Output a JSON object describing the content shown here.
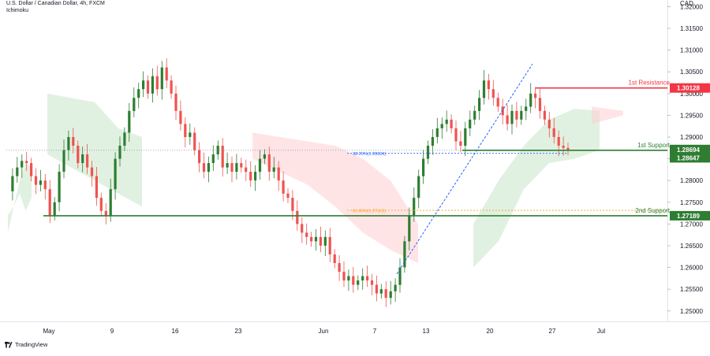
{
  "header": {
    "symbol_line": "U.S. Dollar / Canadian Dollar, 4h, FXCM",
    "indicator": "Ichimoku"
  },
  "footer": {
    "brand": "TradingView"
  },
  "chart_data": {
    "type": "candlestick",
    "y_axis_label": "CAD",
    "y_ticks": [
      1.32,
      1.315,
      1.31,
      1.305,
      1.3,
      1.295,
      1.29,
      1.285,
      1.28,
      1.275,
      1.27,
      1.265,
      1.26,
      1.255,
      1.25
    ],
    "y_tick_labels": [
      "1.32000",
      "1.31500",
      "1.31000",
      "1.30500",
      "1.30000",
      "1.29500",
      "1.29000",
      "1.28500",
      "1.28000",
      "1.27500",
      "1.27000",
      "1.26500",
      "1.26000",
      "1.25500",
      "1.25000"
    ],
    "ylim": [
      1.2476,
      1.3215
    ],
    "x_tick_labels": [
      "May",
      "9",
      "16",
      "23",
      "Jun",
      "7",
      "13",
      "20",
      "27",
      "Jul"
    ],
    "colors": {
      "up": "#26a69a",
      "up_dark": "#2e7d32",
      "down": "#ef5350",
      "resistance": "#f23645",
      "support": "#2e7d32",
      "fib": "#2962ff",
      "fib2": "#f7a21b",
      "cloud_green": "#c8e6c9",
      "cloud_red": "#ffcdd2"
    },
    "levels": [
      {
        "label": "1st Resistance",
        "value": 1.30128,
        "price_tag": "1.30128",
        "color": "#f23645"
      },
      {
        "label": "1st Support",
        "value": 1.28694,
        "price_tag": "1.28694",
        "color": "#2e7d32"
      },
      {
        "label": "2nd Support",
        "value": 1.27189,
        "price_tag": "1.27189",
        "color": "#2e7d32"
      }
    ],
    "extra_price_tag": {
      "value": 1.28647,
      "text": "1.28647"
    },
    "fib_labels": [
      {
        "text": "38.20%(1.28624)",
        "value": 1.28624
      },
      {
        "text": "61.80%(1.27313)",
        "value": 1.27313
      }
    ],
    "price_path": [
      1.2775,
      1.281,
      1.283,
      1.2845,
      1.284,
      1.281,
      1.279,
      1.28,
      1.278,
      1.272,
      1.275,
      1.282,
      1.287,
      1.29,
      1.288,
      1.284,
      1.286,
      1.283,
      1.281,
      1.276,
      1.273,
      1.272,
      1.278,
      1.285,
      1.288,
      1.291,
      1.296,
      1.299,
      1.301,
      1.303,
      1.3,
      1.304,
      1.301,
      1.306,
      1.303,
      1.3,
      1.296,
      1.293,
      1.29,
      1.291,
      1.287,
      1.284,
      1.282,
      1.284,
      1.286,
      1.288,
      1.283,
      1.284,
      1.282,
      1.284,
      1.283,
      1.282,
      1.28,
      1.282,
      1.285,
      1.286,
      1.282,
      1.283,
      1.28,
      1.277,
      1.276,
      1.273,
      1.27,
      1.268,
      1.267,
      1.266,
      1.267,
      1.265,
      1.267,
      1.263,
      1.261,
      1.259,
      1.257,
      1.258,
      1.256,
      1.257,
      1.258,
      1.257,
      1.256,
      1.254,
      1.255,
      1.253,
      1.2545,
      1.256,
      1.26,
      1.266,
      1.272,
      1.276,
      1.281,
      1.285,
      1.288,
      1.29,
      1.292,
      1.293,
      1.294,
      1.292,
      1.289,
      1.288,
      1.292,
      1.294,
      1.296,
      1.299,
      1.303,
      1.301,
      1.299,
      1.297,
      1.295,
      1.293,
      1.296,
      1.294,
      1.296,
      1.297,
      1.3,
      1.299,
      1.296,
      1.294,
      1.292,
      1.29,
      1.288,
      1.2875,
      1.287
    ],
    "trendline": {
      "from_value": 1.2585,
      "to_value": 1.3068
    },
    "cloud_segments": [
      {
        "color": "green",
        "top": [
          1.268,
          1.274,
          1.28,
          1.284,
          1.283
        ],
        "bottom": [
          1.272,
          1.274,
          1.277,
          1.273,
          1.276
        ]
      },
      {
        "color": "green",
        "top": [
          1.3,
          1.299,
          1.298,
          1.292,
          1.29
        ],
        "bottom": [
          1.286,
          1.283,
          1.28,
          1.277,
          1.274
        ]
      },
      {
        "color": "red",
        "top": [
          1.291,
          1.29,
          1.289,
          1.288,
          1.285,
          1.28,
          1.27
        ],
        "bottom": [
          1.285,
          1.282,
          1.279,
          1.274,
          1.268,
          1.264,
          1.261
        ]
      },
      {
        "color": "green",
        "top": [
          1.27,
          1.28,
          1.288,
          1.294,
          1.2965,
          1.296
        ],
        "bottom": [
          1.26,
          1.266,
          1.278,
          1.284,
          1.285,
          1.287
        ]
      },
      {
        "color": "red",
        "top": [
          1.297,
          1.2965,
          1.296
        ],
        "bottom": [
          1.293,
          1.294,
          1.295
        ]
      }
    ]
  }
}
